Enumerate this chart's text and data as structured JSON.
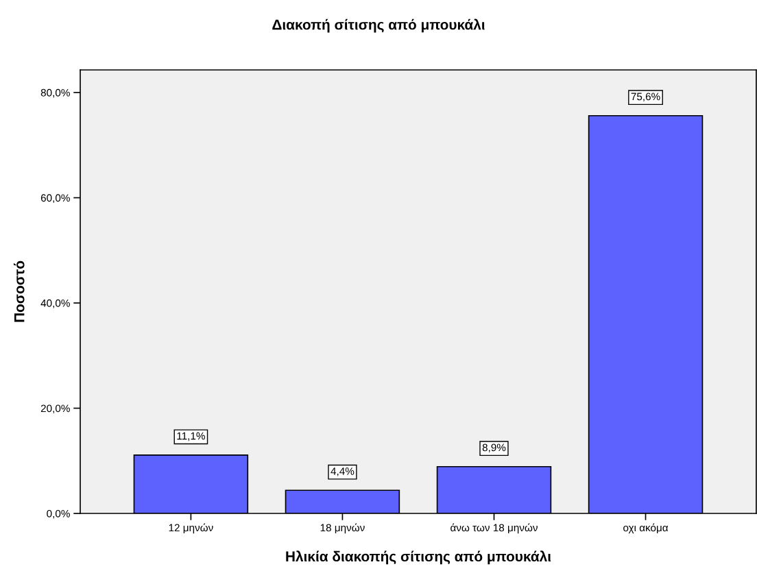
{
  "chart_data": {
    "type": "bar",
    "title": "Διακοπή σίτισης από μπουκάλι",
    "xlabel": "Ηλικία διακοπής σίτισης από μπουκάλι",
    "ylabel": "Ποσοστό",
    "categories": [
      "12 μηνών",
      "18 μηνών",
      "άνω των 18 μηνών",
      "οχι ακόμα"
    ],
    "values": [
      11.1,
      4.4,
      8.9,
      75.6
    ],
    "color": "#5d62ff",
    "value_labels": [
      "11,1%",
      "4,4%",
      "8,9%",
      "75,6%"
    ],
    "ylim": [
      0,
      84.3
    ],
    "yticks": [
      {
        "value": 0,
        "label": "0,0%"
      },
      {
        "value": 20,
        "label": "20,0%"
      },
      {
        "value": 40,
        "label": "40,0%"
      },
      {
        "value": 60,
        "label": "60,0%"
      },
      {
        "value": 80,
        "label": "80,0%"
      }
    ],
    "grid": false,
    "legend": false
  }
}
